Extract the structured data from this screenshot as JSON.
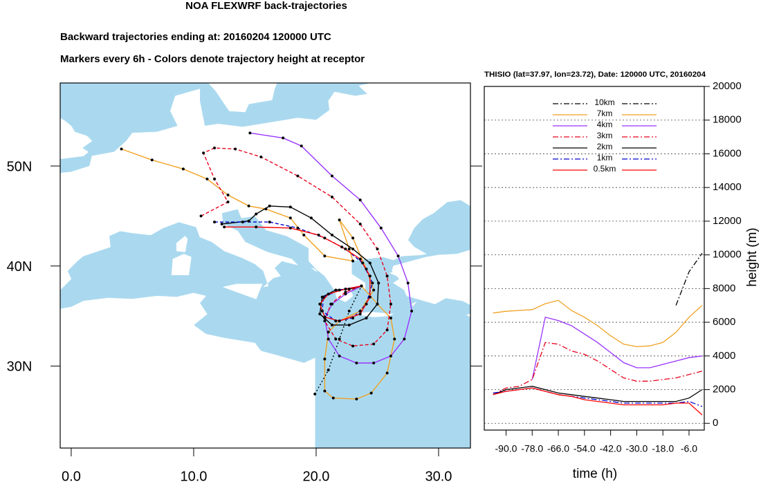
{
  "chart_data": [
    {
      "type": "map",
      "title": "NOA FLEXWRF back-trajectories",
      "subtitles": [
        "Backward trajectories ending at: 20160204  120000 UTC",
        "Markers every 6h - Colors denote trajectory height at receptor"
      ],
      "xlim": [
        -0.9,
        32.6
      ],
      "ylim": [
        21.8,
        58.3
      ],
      "xticks": [
        {
          "value": 0,
          "label": "0.0"
        },
        {
          "value": 10,
          "label": "10.0"
        },
        {
          "value": 20,
          "label": "20.0"
        },
        {
          "value": 30,
          "label": "30.0"
        }
      ],
      "yticks": [
        {
          "value": 30,
          "label": "30N"
        },
        {
          "value": 40,
          "label": "40N"
        },
        {
          "value": 50,
          "label": "50N"
        }
      ],
      "series": [
        {
          "color": "#000000",
          "dash": "dotted",
          "x": [
            19.9,
            21.0,
            21.9,
            22.7,
            23.7
          ],
          "y": [
            27.2,
            29.6,
            32.7,
            35.5,
            38.0
          ]
        },
        {
          "color": "#f0a020",
          "dash": "solid",
          "x": [
            4.1,
            6.6,
            9.15,
            11.1,
            12.8,
            14.5,
            15.9,
            17.9,
            19.0,
            20.7,
            23.0,
            22.7,
            21.9,
            23.0,
            24.1,
            24.7,
            23.6,
            21.9,
            21.0,
            20.7,
            20.7,
            21.4,
            23.3,
            24.5,
            25.8,
            26.4,
            26.1,
            25.0,
            23.7
          ],
          "y": [
            51.7,
            50.6,
            49.7,
            48.7,
            47.1,
            46.0,
            45.7,
            44.8,
            43.1,
            41.0,
            40.5,
            41.7,
            44.6,
            42.8,
            39.7,
            37.6,
            35.5,
            34.5,
            33.4,
            30.7,
            27.5,
            26.8,
            26.7,
            27.3,
            29.3,
            32.7,
            34.8,
            36.2,
            38.0
          ]
        },
        {
          "color": "#9933ff",
          "dash": "solid",
          "x": [
            14.6,
            17.3,
            18.8,
            21.3,
            23.6,
            25.3,
            26.7,
            27.5,
            27.8,
            27.2,
            26.1,
            24.7,
            23.3,
            21.9,
            21.0,
            20.7,
            21.3,
            22.4,
            23.7
          ],
          "y": [
            53.3,
            52.8,
            52.0,
            49.0,
            46.6,
            43.8,
            41.0,
            38.3,
            35.5,
            32.7,
            31.0,
            30.3,
            30.3,
            31.0,
            32.7,
            34.8,
            36.2,
            37.2,
            38.0
          ]
        },
        {
          "color": "#e8001c",
          "dash": "dashed",
          "x": [
            10.6,
            12.8,
            11.7,
            10.8,
            11.7,
            13.4,
            15.5,
            18.5,
            21.3,
            23.6,
            25.0,
            25.8,
            26.1,
            25.8,
            24.7,
            23.0,
            21.6,
            20.7,
            21.2,
            22.4,
            23.7
          ],
          "y": [
            45.0,
            46.4,
            48.7,
            51.3,
            51.8,
            51.7,
            50.9,
            49.0,
            46.9,
            44.2,
            41.7,
            39.0,
            36.2,
            33.6,
            32.2,
            32.0,
            32.7,
            34.5,
            36.2,
            37.4,
            38.0
          ]
        },
        {
          "color": "#000000",
          "dash": "solid",
          "x": [
            12.3,
            14.5,
            15.1,
            16.2,
            17.9,
            19.6,
            21.3,
            23.0,
            24.4,
            25.1,
            25.0,
            24.1,
            22.7,
            21.3,
            20.3,
            20.5,
            21.6,
            22.7,
            23.7
          ],
          "y": [
            44.2,
            44.5,
            45.2,
            46.0,
            45.9,
            44.8,
            43.1,
            41.7,
            40.3,
            38.3,
            36.2,
            34.8,
            34.1,
            34.1,
            35.2,
            36.9,
            37.6,
            37.7,
            38.0
          ]
        },
        {
          "color": "#0000cc",
          "dash": "dashed",
          "x": [
            11.7,
            14.0,
            16.2,
            18.5,
            20.7,
            22.4,
            23.8,
            24.6,
            24.1,
            23.0,
            21.6,
            20.5,
            20.6,
            21.9,
            23.7
          ],
          "y": [
            44.4,
            44.4,
            44.4,
            43.8,
            42.8,
            41.7,
            40.3,
            38.3,
            36.2,
            34.8,
            34.5,
            35.5,
            36.9,
            37.6,
            38.0
          ]
        },
        {
          "color": "#ff0000",
          "dash": "solid",
          "x": [
            12.5,
            15.1,
            17.9,
            20.2,
            22.1,
            23.6,
            24.4,
            24.4,
            23.6,
            21.9,
            20.7,
            20.3,
            21.0,
            22.4,
            23.7
          ],
          "y": [
            43.9,
            43.9,
            43.8,
            43.1,
            41.9,
            40.7,
            39.0,
            36.9,
            35.2,
            34.5,
            34.9,
            36.2,
            37.2,
            37.7,
            38.0
          ]
        }
      ]
    },
    {
      "type": "line",
      "title": "THISIO (lat=37.97,  lon=23.72), Date: 120000 UTC, 20160204",
      "xlabel": "time (h)",
      "ylabel": "height (m)",
      "x": [
        -96,
        -90,
        -84,
        -78,
        -72,
        -66,
        -60,
        -54,
        -48,
        -42,
        -36,
        -30,
        -24,
        -18,
        -12,
        -6,
        0
      ],
      "xlim": [
        -100,
        1
      ],
      "ylim": [
        -400,
        20000
      ],
      "xticks": [
        {
          "value": -90,
          "label": "-90.0"
        },
        {
          "value": -78,
          "label": "-78.0"
        },
        {
          "value": -66,
          "label": "-66.0"
        },
        {
          "value": -54,
          "label": "-54.0"
        },
        {
          "value": -42,
          "label": "-42.0"
        },
        {
          "value": -30,
          "label": "-30.0"
        },
        {
          "value": -18,
          "label": "-18.0"
        },
        {
          "value": -6,
          "label": "-6.0"
        }
      ],
      "yticks": [
        0,
        2000,
        4000,
        6000,
        8000,
        10000,
        12000,
        14000,
        16000,
        18000,
        20000
      ],
      "grid": true,
      "legend": "top",
      "series": [
        {
          "name": "10km",
          "color": "#000000",
          "dash": "dashdot",
          "values": [
            null,
            null,
            null,
            null,
            null,
            null,
            null,
            null,
            null,
            null,
            null,
            null,
            null,
            null,
            7000,
            9000,
            10100
          ]
        },
        {
          "name": "7km",
          "color": "#f0a020",
          "dash": "solid",
          "values": [
            6550,
            6650,
            6700,
            6750,
            7100,
            7300,
            6700,
            6300,
            5800,
            5200,
            4700,
            4550,
            4600,
            4800,
            5400,
            6300,
            7000
          ]
        },
        {
          "name": "4km",
          "color": "#9933ff",
          "dash": "solid",
          "values": [
            null,
            null,
            null,
            2600,
            6300,
            6100,
            5800,
            5300,
            4800,
            4200,
            3600,
            3300,
            3300,
            3500,
            3700,
            3900,
            4000
          ]
        },
        {
          "name": "3km",
          "color": "#e8001c",
          "dash": "dashdot",
          "values": [
            1700,
            2100,
            2200,
            2600,
            4800,
            4700,
            4300,
            4100,
            3700,
            3200,
            2700,
            2500,
            2500,
            2600,
            2700,
            2900,
            3100
          ]
        },
        {
          "name": "2km",
          "color": "#000000",
          "dash": "solid",
          "values": [
            1700,
            2000,
            2100,
            2200,
            2000,
            1800,
            1700,
            1600,
            1500,
            1400,
            1300,
            1300,
            1300,
            1300,
            1300,
            1500,
            2000
          ]
        },
        {
          "name": "1km",
          "color": "#0000cc",
          "dash": "dashdot",
          "values": [
            1800,
            1900,
            2000,
            2100,
            1900,
            1700,
            1600,
            1500,
            1400,
            1300,
            1200,
            1200,
            1200,
            1200,
            1200,
            1300,
            1000
          ]
        },
        {
          "name": "0.5km",
          "color": "#ff0000",
          "dash": "solid",
          "values": [
            1700,
            1900,
            2000,
            2100,
            1900,
            1700,
            1600,
            1400,
            1300,
            1200,
            1100,
            1100,
            1100,
            1100,
            1200,
            1200,
            500
          ]
        }
      ]
    }
  ]
}
